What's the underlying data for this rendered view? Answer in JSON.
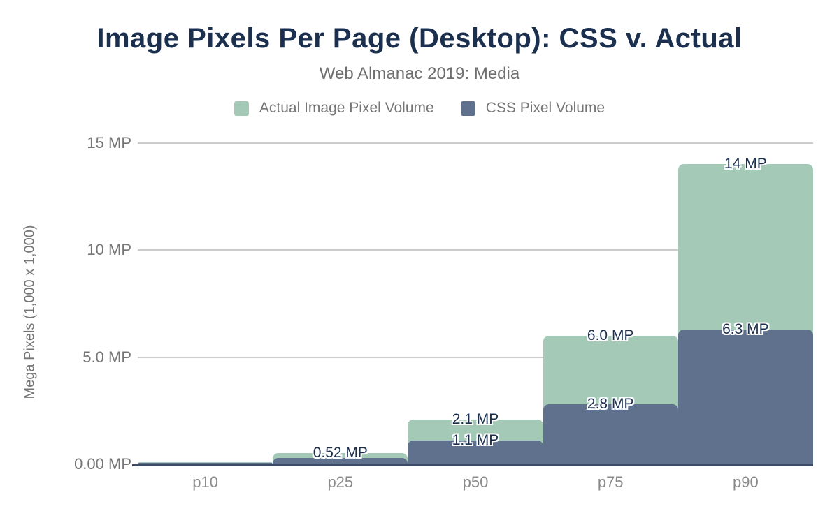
{
  "chart_data": {
    "type": "bar",
    "variant": "overlapping-step-area",
    "title": "Image Pixels Per Page (Desktop): CSS v. Actual",
    "subtitle": "Web Almanac 2019: Media",
    "categories": [
      "p10",
      "p25",
      "p50",
      "p75",
      "p90"
    ],
    "series": [
      {
        "name": "Actual Image Pixel Volume",
        "color": "#a5c9b7",
        "values": [
          0.1,
          0.52,
          2.1,
          6.0,
          14
        ],
        "labels": [
          "",
          "0.52 MP",
          "2.1 MP",
          "6.0 MP",
          "14 MP"
        ]
      },
      {
        "name": "CSS Pixel Volume",
        "color": "#5f718d",
        "values": [
          0.06,
          0.3,
          1.1,
          2.8,
          6.3
        ],
        "labels": [
          "",
          "",
          "1.1 MP",
          "2.8 MP",
          "6.3 MP"
        ]
      }
    ],
    "xlabel": "",
    "ylabel": "Mega Pixels (1,000 x 1,000)",
    "yticks": [
      {
        "value": 0,
        "label": "0.00 MP"
      },
      {
        "value": 5,
        "label": "5.0 MP"
      },
      {
        "value": 10,
        "label": "10 MP"
      },
      {
        "value": 15,
        "label": "15 MP"
      }
    ],
    "ylim": [
      0,
      15
    ],
    "grid": true,
    "legend_position": "top"
  },
  "colors": {
    "title": "#1b2f4e",
    "subtitle_text": "#6f6f6f",
    "tick_text": "#757575",
    "gridline": "#cccccc",
    "axis_line": "#3d4a63",
    "annotation_text": "#1b2f4e",
    "background": "#ffffff"
  }
}
